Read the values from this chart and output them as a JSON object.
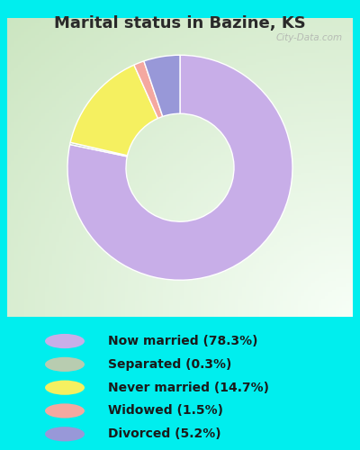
{
  "title": "Marital status in Bazine, KS",
  "title_fontsize": 13,
  "title_fontweight": "bold",
  "title_color": "#2a2a2a",
  "background_cyan": "#00EEEE",
  "chart_box_bg": "#d4e8d0",
  "slices": [
    {
      "label": "Now married (78.3%)",
      "value": 78.3,
      "color": "#c8aee8"
    },
    {
      "label": "Separated (0.3%)",
      "value": 0.3,
      "color": "#b8ccb0"
    },
    {
      "label": "Never married (14.7%)",
      "value": 14.7,
      "color": "#f5f060"
    },
    {
      "label": "Widowed (1.5%)",
      "value": 1.5,
      "color": "#f4a8a0"
    },
    {
      "label": "Divorced (5.2%)",
      "value": 5.2,
      "color": "#9898d8"
    }
  ],
  "legend_fontsize": 10,
  "watermark": "City-Data.com",
  "donut_width": 0.52
}
